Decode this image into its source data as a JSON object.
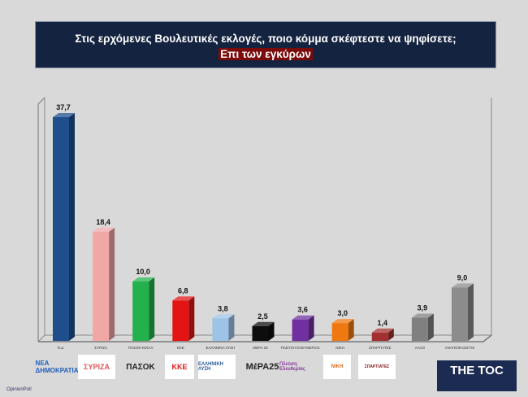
{
  "header": {
    "title": "Στις ερχόμενες Βουλευτικές εκλογές, ποιο κόμμα σκέφτεστε να ψηφίσετε;",
    "subtitle": "Επι των εγκύρων"
  },
  "chart_data": {
    "type": "bar",
    "title": "Στις ερχόμενες Βουλευτικές εκλογές, ποιο κόμμα σκέφτεστε να ψηφίσετε;",
    "subtitle": "Επι των εγκύρων",
    "categories": [
      "Ν.Δ.",
      "ΣΥΡΙΖΑ",
      "ΠΑΣΟΚ-ΚΙΝΑΛ",
      "ΚΚΕ",
      "ΕΛΛΗΝΙΚΗ ΛΥΣΗ",
      "ΜΕΡΑ 25",
      "ΠΛΕΥΣΗ ΕΛΕΥΘΕΡΙΑΣ",
      "ΝΙΚΗ",
      "ΣΠΑΡΤΙΑΤΕΣ",
      "ΑΛΛΟ",
      "ΑΝΑΠΟΦΑΣΙΣΤΟΙ"
    ],
    "values": [
      37.7,
      18.4,
      10.0,
      6.8,
      3.8,
      2.5,
      3.6,
      3.0,
      1.4,
      3.9,
      9.0
    ],
    "labels": [
      "37,7",
      "18,4",
      "10,0",
      "6,8",
      "3,8",
      "2,5",
      "3,6",
      "3,0",
      "1,4",
      "3,9",
      "9,0"
    ],
    "colors": [
      "#1f4e8c",
      "#f2a7a7",
      "#22b14c",
      "#e31414",
      "#9dc3e6",
      "#0d0d0d",
      "#7030a0",
      "#f07810",
      "#a33030",
      "#808080",
      "#8c8c8c"
    ],
    "ylim": [
      0,
      40
    ],
    "grid": false,
    "style": "3d"
  },
  "logos": [
    "ΝΕΑ ΔΗΜΟΚΡΑΤΙΑ",
    "ΣΥΡΙΖΑ",
    "ΠΑΣΟΚ",
    "ΚΚΕ",
    "ΕΛΛΗΝΙΚΗ ΛΥΣΗ",
    "ΜέΡΑ25",
    "Πλεύση Ελευθερίας",
    "ΝΙΚΗ",
    "ΣΠΑΡΤΙΑΤΕΣ"
  ],
  "footer": {
    "source": "OpinionPoll",
    "brand": "THE TOC"
  }
}
